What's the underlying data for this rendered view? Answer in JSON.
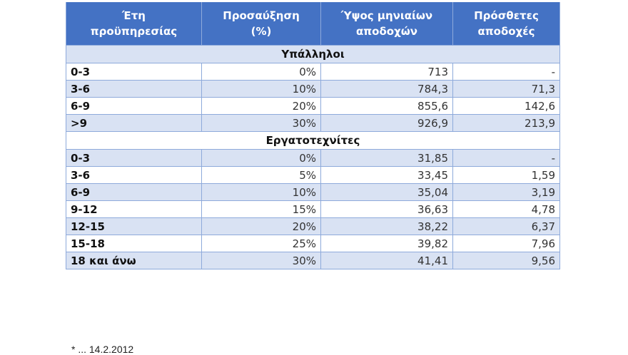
{
  "table": {
    "headers": [
      {
        "line1": "Έτη",
        "line2": "προϋπηρεσίας"
      },
      {
        "line1": "Προσαύξηση",
        "line2": "(%)"
      },
      {
        "line1": "Ύψος μηνιαίων",
        "line2": "αποδοχών"
      },
      {
        "line1": "Πρόσθετες",
        "line2": "αποδοχές"
      }
    ],
    "sections": [
      {
        "title": "Υπάλληλοι",
        "rows": [
          {
            "years": "0-3",
            "increase": "0%",
            "monthly": "713",
            "additional": "-"
          },
          {
            "years": "3-6",
            "increase": "10%",
            "monthly": "784,3",
            "additional": "71,3"
          },
          {
            "years": "6-9",
            "increase": "20%",
            "monthly": "855,6",
            "additional": "142,6"
          },
          {
            "years": ">9",
            "increase": "30%",
            "monthly": "926,9",
            "additional": "213,9"
          }
        ]
      },
      {
        "title": "Εργατοτεχνίτες",
        "rows": [
          {
            "years": "0-3",
            "increase": "0%",
            "monthly": "31,85",
            "additional": "-"
          },
          {
            "years": "3-6",
            "increase": "5%",
            "monthly": "33,45",
            "additional": "1,59"
          },
          {
            "years": "6-9",
            "increase": "10%",
            "monthly": "35,04",
            "additional": "3,19"
          },
          {
            "years": "9-12",
            "increase": "15%",
            "monthly": "36,63",
            "additional": "4,78"
          },
          {
            "years": "12-15",
            "increase": "20%",
            "monthly": "38,22",
            "additional": "6,37"
          },
          {
            "years": "15-18",
            "increase": "25%",
            "monthly": "39,82",
            "additional": "7,96"
          },
          {
            "years": "18 και άνω",
            "increase": "30%",
            "monthly": "41,41",
            "additional": "9,56"
          }
        ]
      }
    ]
  },
  "footnote": "* ... 14.2.2012",
  "colors": {
    "header_bg": "#4472c4",
    "band_bg": "#d9e2f3",
    "border": "#8eaadb"
  }
}
